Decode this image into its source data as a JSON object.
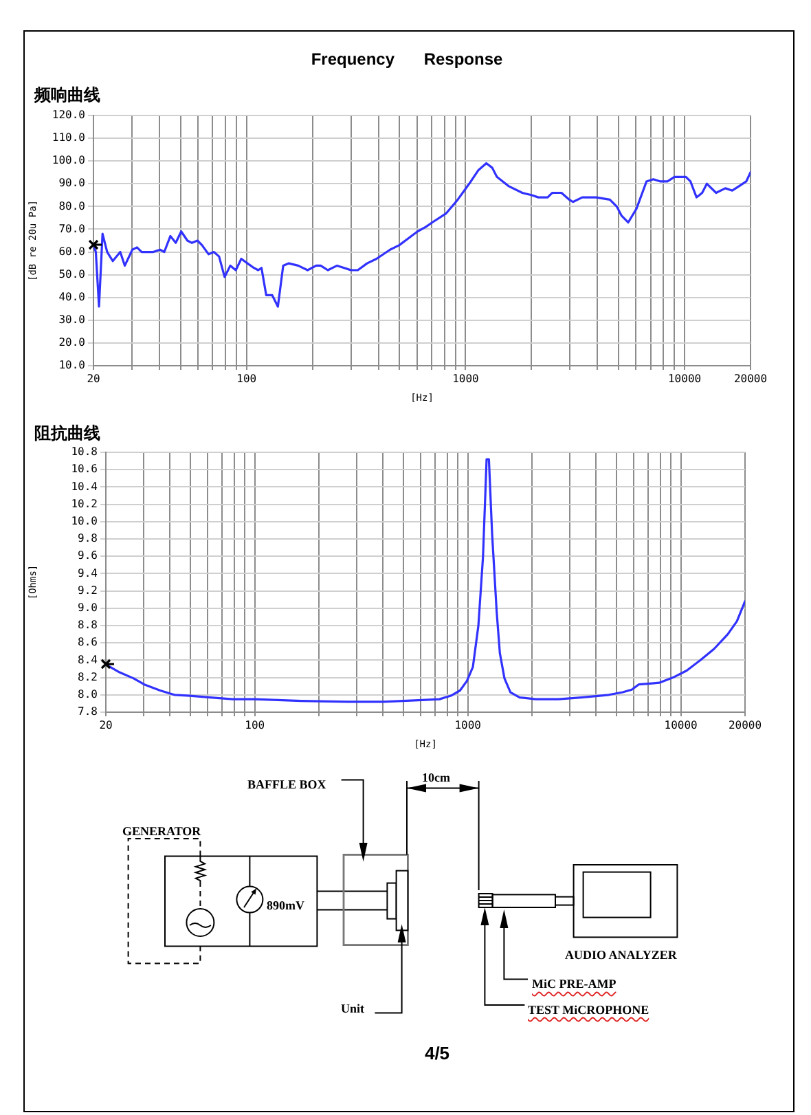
{
  "chart_data": [
    {
      "type": "line",
      "title": "Frequency Response",
      "subtitle": "频响曲线",
      "xlabel": "[Hz]",
      "ylabel": "[dB re 20u Pa]",
      "log": "x",
      "x": [
        20,
        20.5,
        21.2,
        22,
        23.1,
        24.5,
        26.5,
        27.8,
        30.1,
        31.6,
        33.2,
        37.5,
        40.3,
        42.1,
        44.9,
        47.5,
        50.3,
        53.7,
        56.3,
        59.7,
        62.6,
        67.1,
        70.9,
        74.9,
        79.4,
        84.3,
        89.3,
        94.6,
        101,
        108,
        113,
        117,
        123,
        131,
        139,
        147,
        156,
        172,
        190,
        208,
        218,
        235,
        259,
        279,
        300,
        322,
        355,
        392,
        452,
        498,
        548,
        603,
        658,
        705,
        816,
        921,
        1039,
        1145,
        1244,
        1324,
        1390,
        1569,
        1815,
        2000,
        2150,
        2370,
        2485,
        2740,
        2975,
        3093,
        3410,
        3942,
        4557,
        4900,
        5150,
        5530,
        6030,
        6700,
        7200,
        7760,
        8350,
        8990,
        9530,
        10140,
        10640,
        11340,
        12030,
        12640,
        13930,
        15350,
        16510,
        17770,
        19120,
        20000
      ],
      "series": [
        {
          "color": "#3232ff",
          "values": [
            63,
            60,
            36,
            68,
            60,
            56,
            60,
            54,
            61,
            62,
            60,
            60,
            61,
            60,
            67,
            64,
            69,
            65,
            64,
            65,
            63,
            59,
            60,
            58,
            49,
            54,
            52,
            57,
            55,
            53,
            52,
            53,
            41,
            41,
            36,
            54,
            55,
            54,
            52,
            54,
            54,
            52,
            54,
            53,
            52,
            52,
            55,
            57,
            61,
            63,
            66,
            69,
            71,
            73,
            77,
            83,
            90,
            96,
            99,
            97,
            93,
            89,
            86,
            85,
            84,
            84,
            86,
            86,
            83,
            82,
            84,
            84,
            83,
            80,
            76,
            73,
            79,
            91,
            92,
            91,
            91,
            93,
            93,
            93,
            91,
            84,
            86,
            90,
            86,
            88,
            87,
            89,
            91,
            95
          ]
        }
      ],
      "xlim": [
        20,
        20000
      ],
      "ylim": [
        10,
        120
      ],
      "xticks": [
        20,
        {
          "value": 30,
          "label": null
        },
        {
          "value": 40,
          "label": null
        },
        {
          "value": 50,
          "label": null
        },
        {
          "value": 60,
          "label": null
        },
        {
          "value": 70,
          "label": null
        },
        {
          "value": 80,
          "label": null
        },
        {
          "value": 90,
          "label": null
        },
        100,
        {
          "value": 200,
          "label": null
        },
        {
          "value": 300,
          "label": null
        },
        {
          "value": 400,
          "label": null
        },
        {
          "value": 500,
          "label": null
        },
        {
          "value": 600,
          "label": null
        },
        {
          "value": 700,
          "label": null
        },
        {
          "value": 800,
          "label": null
        },
        {
          "value": 900,
          "label": null
        },
        1000,
        {
          "value": 2000,
          "label": null
        },
        {
          "value": 3000,
          "label": null
        },
        {
          "value": 4000,
          "label": null
        },
        {
          "value": 5000,
          "label": null
        },
        {
          "value": 6000,
          "label": null
        },
        {
          "value": 7000,
          "label": null
        },
        {
          "value": 8000,
          "label": null
        },
        {
          "value": 9000,
          "label": null
        },
        10000,
        20000
      ],
      "yticks": [
        {
          "value": 10,
          "label": "10.0"
        },
        {
          "value": 20,
          "label": "20.0"
        },
        {
          "value": 30,
          "label": "30.0"
        },
        {
          "value": 40,
          "label": "40.0"
        },
        {
          "value": 50,
          "label": "50.0"
        },
        {
          "value": 60,
          "label": "60.0"
        },
        {
          "value": 70,
          "label": "70.0"
        },
        {
          "value": 80,
          "label": "80.0"
        },
        {
          "value": 90,
          "label": "90.0"
        },
        {
          "value": 100,
          "label": "100.0"
        },
        {
          "value": 110,
          "label": "110.0"
        },
        {
          "value": 120,
          "label": "120.0"
        }
      ],
      "grid": true
    },
    {
      "type": "line",
      "title": "阻抗曲线",
      "xlabel": "[Hz]",
      "ylabel": "[Ohms]",
      "log": "x",
      "x": [
        20,
        23.2,
        27,
        30.3,
        36,
        41.9,
        49.6,
        61.9,
        78.8,
        100,
        165,
        272,
        402,
        611,
        736,
        833,
        919,
        990,
        1056,
        1121,
        1178,
        1225,
        1256,
        1300,
        1366,
        1414,
        1486,
        1585,
        1750,
        2080,
        2665,
        3410,
        4590,
        5330,
        5880,
        6340,
        7170,
        7920,
        9190,
        10650,
        12330,
        14310,
        16600,
        18330,
        20000
      ],
      "series": [
        {
          "color": "#3232ff",
          "values": [
            8.35,
            8.26,
            8.19,
            8.12,
            8.05,
            8.0,
            7.99,
            7.97,
            7.95,
            7.95,
            7.93,
            7.92,
            7.92,
            7.94,
            7.95,
            7.99,
            8.05,
            8.16,
            8.32,
            8.8,
            9.59,
            10.72,
            10.72,
            9.86,
            8.96,
            8.48,
            8.19,
            8.03,
            7.97,
            7.95,
            7.95,
            7.97,
            8.0,
            8.03,
            8.06,
            8.12,
            8.13,
            8.14,
            8.2,
            8.28,
            8.4,
            8.53,
            8.7,
            8.85,
            9.08
          ]
        }
      ],
      "xlim": [
        20,
        20000
      ],
      "ylim": [
        7.8,
        10.8
      ],
      "xticks": [
        20,
        {
          "value": 30,
          "label": null
        },
        {
          "value": 40,
          "label": null
        },
        {
          "value": 50,
          "label": null
        },
        {
          "value": 60,
          "label": null
        },
        {
          "value": 70,
          "label": null
        },
        {
          "value": 80,
          "label": null
        },
        {
          "value": 90,
          "label": null
        },
        100,
        {
          "value": 200,
          "label": null
        },
        {
          "value": 300,
          "label": null
        },
        {
          "value": 400,
          "label": null
        },
        {
          "value": 500,
          "label": null
        },
        {
          "value": 600,
          "label": null
        },
        {
          "value": 700,
          "label": null
        },
        {
          "value": 800,
          "label": null
        },
        {
          "value": 900,
          "label": null
        },
        1000,
        {
          "value": 2000,
          "label": null
        },
        {
          "value": 3000,
          "label": null
        },
        {
          "value": 4000,
          "label": null
        },
        {
          "value": 5000,
          "label": null
        },
        {
          "value": 6000,
          "label": null
        },
        {
          "value": 7000,
          "label": null
        },
        {
          "value": 8000,
          "label": null
        },
        {
          "value": 9000,
          "label": null
        },
        10000,
        20000
      ],
      "yticks": [
        7.8,
        {
          "value": 8,
          "label": "8.0"
        },
        8.2,
        8.4,
        8.6,
        8.8,
        {
          "value": 9,
          "label": "9.0"
        },
        9.2,
        9.4,
        9.6,
        9.8,
        {
          "value": 10,
          "label": "10.0"
        },
        10.2,
        10.4,
        10.6,
        10.8
      ],
      "grid": true
    },
    {
      "type": "other",
      "annotations": [
        "BAFFLE BOX",
        "10cm",
        "GENERATOR",
        "890mV",
        "AUDIO ANALYZER",
        "MiC PRE-AMP",
        "Unit",
        "TEST MiCROPHONE",
        "4/5"
      ]
    }
  ]
}
